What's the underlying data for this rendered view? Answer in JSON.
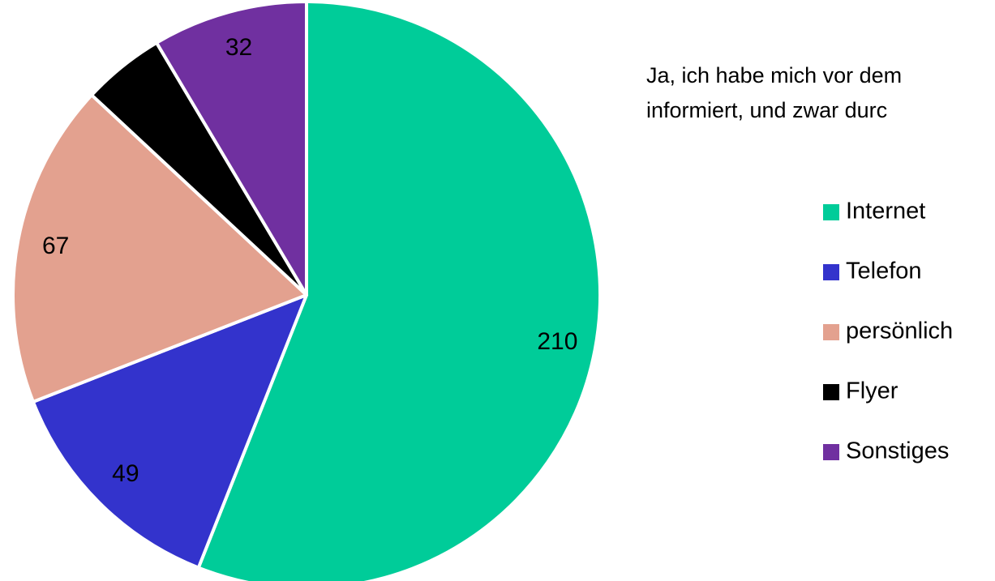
{
  "chart_data": {
    "type": "pie",
    "title": [
      "Ja, ich habe mich vor dem",
      "informiert, und zwar durc"
    ],
    "categories": [
      "Internet",
      "Telefon",
      "persönlich",
      "Flyer",
      "Sonstiges"
    ],
    "values": [
      210,
      49,
      67,
      17,
      32
    ],
    "value_labels": [
      "210",
      "49",
      "67",
      null,
      "32"
    ],
    "colors": [
      "#00cc99",
      "#3333cc",
      "#e3a18f",
      "#000000",
      "#7030a0"
    ],
    "legend": "right"
  }
}
